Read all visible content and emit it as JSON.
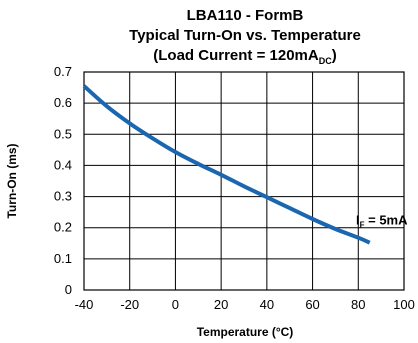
{
  "chart_data": {
    "type": "line",
    "title": {
      "line1": "LBA110 - FormB",
      "line2": "Typical Turn-On vs. Temperature",
      "line3_prefix": "(Load Current = 120mA",
      "line3_sub": "DC",
      "line3_suffix": ")"
    },
    "xlabel": "Temperature (°C)",
    "ylabel": "Turn-On (ms)",
    "xlim": [
      -40,
      100
    ],
    "ylim": [
      0,
      0.7
    ],
    "xticks": [
      -40,
      -20,
      0,
      20,
      40,
      60,
      80,
      100
    ],
    "yticks": [
      0,
      0.1,
      0.2,
      0.3,
      0.4,
      0.5,
      0.6,
      0.7
    ],
    "xtick_labels": [
      "-40",
      "-20",
      "0",
      "20",
      "40",
      "60",
      "80",
      "100"
    ],
    "ytick_labels": [
      "0",
      "0.1",
      "0.2",
      "0.3",
      "0.4",
      "0.5",
      "0.6",
      "0.7"
    ],
    "grid": true,
    "series": [
      {
        "color": "#1a66b0",
        "x": [
          -40,
          -30,
          -20,
          -10,
          0,
          10,
          20,
          30,
          40,
          50,
          60,
          70,
          80,
          85
        ],
        "y": [
          0.655,
          0.59,
          0.535,
          0.487,
          0.443,
          0.405,
          0.37,
          0.333,
          0.298,
          0.263,
          0.228,
          0.196,
          0.168,
          0.152
        ]
      }
    ],
    "annotation": {
      "prefix": "I",
      "sub": "F",
      "suffix": " = 5mA",
      "x": 79,
      "y": 0.21
    }
  }
}
